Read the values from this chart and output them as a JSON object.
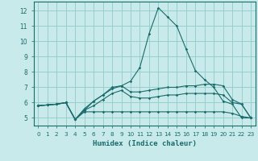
{
  "xlabel": "Humidex (Indice chaleur)",
  "xlim": [
    -0.5,
    23.5
  ],
  "ylim": [
    4.5,
    12.6
  ],
  "yticks": [
    5,
    6,
    7,
    8,
    9,
    10,
    11,
    12
  ],
  "xticks": [
    0,
    1,
    2,
    3,
    4,
    5,
    6,
    7,
    8,
    9,
    10,
    11,
    12,
    13,
    14,
    15,
    16,
    17,
    18,
    19,
    20,
    21,
    22,
    23
  ],
  "bg_color": "#c8eaea",
  "grid_color": "#9acece",
  "line_color": "#1a6b6b",
  "lines": [
    {
      "x": [
        0,
        1,
        2,
        3,
        4,
        5,
        6,
        7,
        8,
        9,
        10,
        11,
        12,
        13,
        14,
        15,
        16,
        17,
        18,
        19,
        20,
        21,
        22,
        23
      ],
      "y": [
        5.8,
        5.85,
        5.9,
        6.0,
        4.9,
        5.5,
        6.1,
        6.5,
        7.0,
        7.1,
        7.4,
        8.3,
        10.5,
        12.2,
        11.6,
        11.0,
        9.5,
        8.1,
        7.5,
        7.0,
        6.1,
        5.9,
        5.0,
        5.0
      ]
    },
    {
      "x": [
        0,
        1,
        2,
        3,
        4,
        5,
        6,
        7,
        8,
        9,
        10,
        11,
        12,
        13,
        14,
        15,
        16,
        17,
        18,
        19,
        20,
        21,
        22,
        23
      ],
      "y": [
        5.8,
        5.85,
        5.9,
        6.0,
        4.9,
        5.6,
        6.1,
        6.5,
        6.9,
        7.1,
        6.7,
        6.7,
        6.8,
        6.9,
        7.0,
        7.0,
        7.1,
        7.1,
        7.2,
        7.2,
        7.1,
        6.2,
        5.9,
        5.0
      ]
    },
    {
      "x": [
        0,
        1,
        2,
        3,
        4,
        5,
        6,
        7,
        8,
        9,
        10,
        11,
        12,
        13,
        14,
        15,
        16,
        17,
        18,
        19,
        20,
        21,
        22,
        23
      ],
      "y": [
        5.8,
        5.85,
        5.9,
        6.0,
        4.9,
        5.5,
        5.8,
        6.2,
        6.6,
        6.8,
        6.4,
        6.3,
        6.3,
        6.4,
        6.5,
        6.5,
        6.6,
        6.6,
        6.6,
        6.6,
        6.5,
        6.0,
        5.9,
        5.0
      ]
    },
    {
      "x": [
        0,
        1,
        2,
        3,
        4,
        5,
        6,
        7,
        8,
        9,
        10,
        11,
        12,
        13,
        14,
        15,
        16,
        17,
        18,
        19,
        20,
        21,
        22,
        23
      ],
      "y": [
        5.8,
        5.85,
        5.9,
        6.0,
        4.9,
        5.4,
        5.4,
        5.4,
        5.4,
        5.4,
        5.4,
        5.4,
        5.4,
        5.4,
        5.4,
        5.4,
        5.4,
        5.4,
        5.4,
        5.4,
        5.4,
        5.3,
        5.1,
        5.0
      ]
    }
  ]
}
